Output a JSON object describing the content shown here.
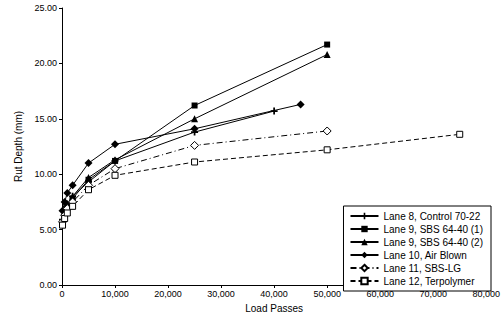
{
  "chart_data": {
    "type": "line",
    "x_label": "Load Passes",
    "y_label": "Rut Depth (mm)",
    "xlim": [
      0,
      80000
    ],
    "xticks": [
      0,
      {
        "value": 10000,
        "label": "10,000"
      },
      {
        "value": 20000,
        "label": "20,000"
      },
      {
        "value": 30000,
        "label": "30,000"
      },
      {
        "value": 40000,
        "label": "40,000"
      },
      {
        "value": 50000,
        "label": "50,000"
      },
      {
        "value": 60000,
        "label": "60,000"
      },
      {
        "value": 70000,
        "label": "70,000"
      },
      {
        "value": 80000,
        "label": "80,000"
      }
    ],
    "ylim": [
      0,
      25
    ],
    "yticks": [
      {
        "value": 0,
        "label": "0.00"
      },
      {
        "value": 5,
        "label": "5.00"
      },
      {
        "value": 10,
        "label": "10.00"
      },
      {
        "value": 15,
        "label": "15.00"
      },
      {
        "value": 20,
        "label": "20.00"
      },
      {
        "value": 25,
        "label": "25.00"
      }
    ],
    "grid": false,
    "legend": "lower right",
    "series": [
      {
        "name": "Lane 8, Control 70-22",
        "color": "#000000",
        "marker": "plus",
        "line_style": "solid",
        "x": [
          100,
          500,
          1000,
          2000,
          5000,
          10000,
          25000,
          40000
        ],
        "values": [
          5.9,
          6.8,
          7.3,
          8.0,
          9.3,
          11.2,
          13.8,
          15.7
        ]
      },
      {
        "name": "Lane 9, SBS 64-40 (1)",
        "color": "#000000",
        "marker": "square",
        "line_style": "solid",
        "x": [
          100,
          500,
          1000,
          2000,
          5000,
          10000,
          25000,
          50000
        ],
        "values": [
          5.5,
          6.3,
          7.0,
          7.8,
          9.5,
          11.2,
          16.2,
          21.7
        ]
      },
      {
        "name": "Lane 9, SBS 64-40 (2)",
        "color": "#000000",
        "marker": "triangle",
        "line_style": "solid",
        "x": [
          100,
          500,
          1000,
          2000,
          5000,
          10000,
          25000,
          50000
        ],
        "values": [
          5.6,
          6.5,
          7.2,
          8.0,
          9.7,
          11.3,
          15.0,
          20.8
        ]
      },
      {
        "name": "Lane 10, Air Blown",
        "color": "#000000",
        "marker": "diamond",
        "line_style": "solid",
        "x": [
          100,
          500,
          1000,
          2000,
          5000,
          10000,
          25000,
          45000
        ],
        "values": [
          6.7,
          7.5,
          8.3,
          9.0,
          11.0,
          12.7,
          14.1,
          16.3
        ]
      },
      {
        "name": "Lane 11, SBS-LG",
        "color": "#000000",
        "marker": "diamond_open",
        "line_style": "dashdot",
        "x": [
          100,
          500,
          1000,
          2000,
          5000,
          10000,
          25000,
          50000
        ],
        "values": [
          5.7,
          6.3,
          6.9,
          7.5,
          9.0,
          10.5,
          12.6,
          13.9
        ]
      },
      {
        "name": "Lane 12, Terpolymer",
        "color": "#000000",
        "marker": "square_open",
        "line_style": "dashed",
        "x": [
          100,
          500,
          1000,
          2000,
          5000,
          10000,
          25000,
          50000,
          75000
        ],
        "values": [
          5.4,
          6.0,
          6.5,
          7.1,
          8.6,
          9.9,
          11.1,
          12.2,
          13.6
        ]
      }
    ]
  }
}
